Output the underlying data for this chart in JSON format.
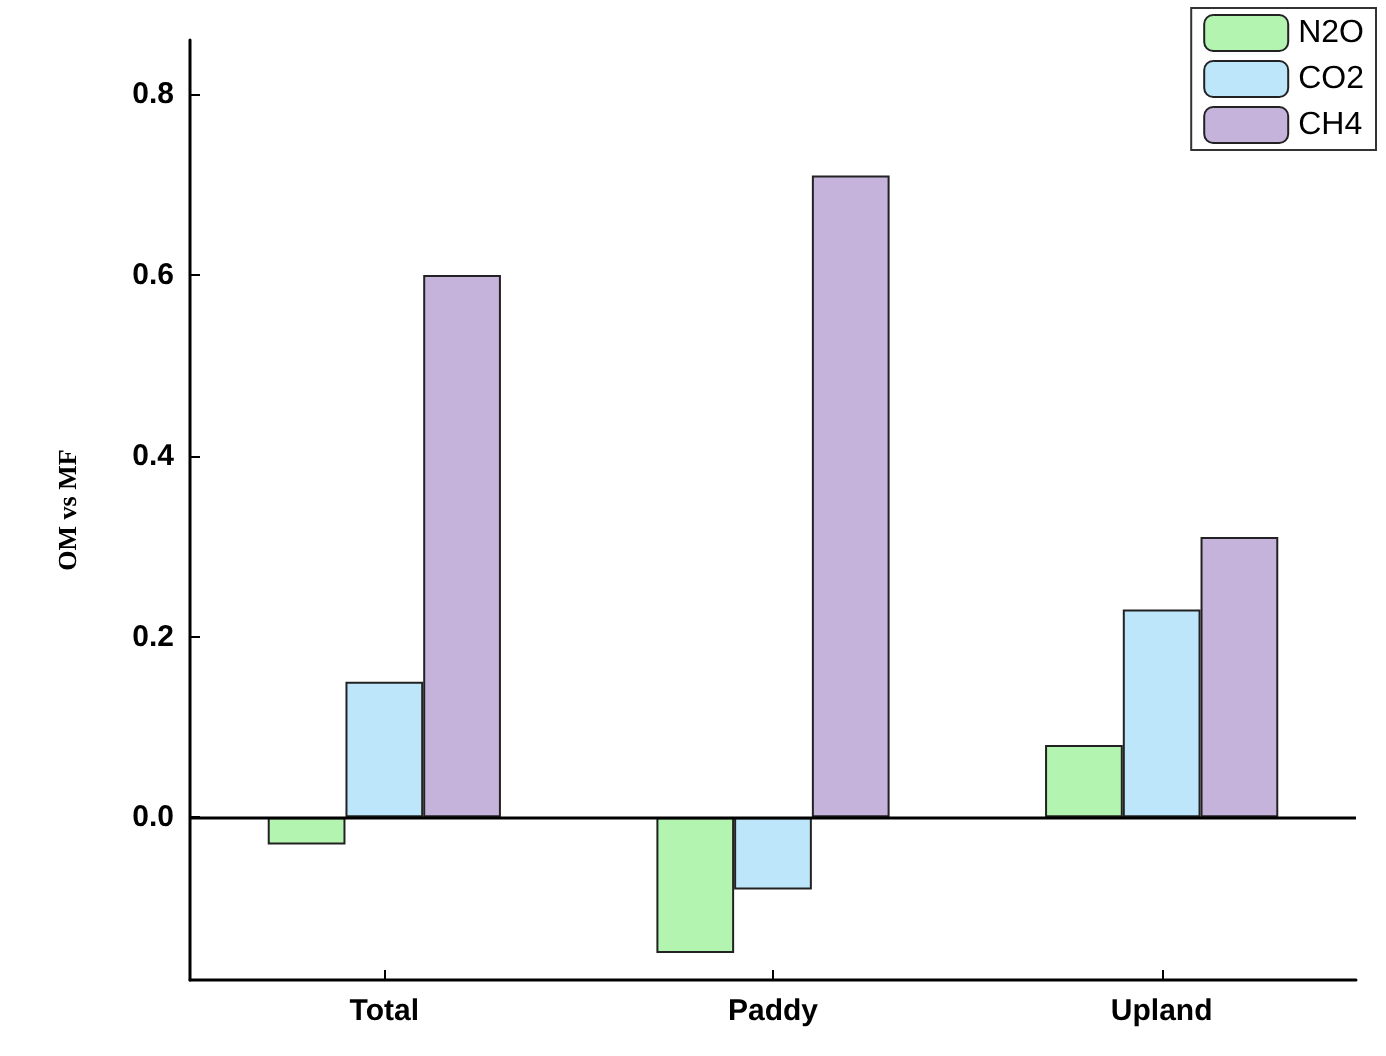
{
  "chart_data": {
    "type": "bar",
    "ylabel": "OM vs MF",
    "categories": [
      "Total",
      "Paddy",
      "Upland"
    ],
    "series": [
      {
        "name": "N2O",
        "color": "#b3f5b0",
        "values": [
          -0.03,
          -0.15,
          0.08
        ]
      },
      {
        "name": "CO2",
        "color": "#bde6fb",
        "values": [
          0.15,
          -0.08,
          0.23
        ]
      },
      {
        "name": "CH4",
        "color": "#c5b3dc",
        "values": [
          0.6,
          0.71,
          0.31
        ]
      }
    ],
    "ylim": [
      -0.18,
      0.86
    ],
    "yticks": [
      {
        "value": 0,
        "label": "0.0"
      },
      {
        "value": 0.2,
        "label": "0.2"
      },
      {
        "value": 0.4,
        "label": "0.4"
      },
      {
        "value": 0.6,
        "label": "0.6"
      },
      {
        "value": 0.8,
        "label": "0.8"
      }
    ],
    "ref_lines": [
      {
        "axis": "y",
        "value": 0,
        "color": "#000000"
      }
    ],
    "grid": false,
    "legend": "top right"
  }
}
